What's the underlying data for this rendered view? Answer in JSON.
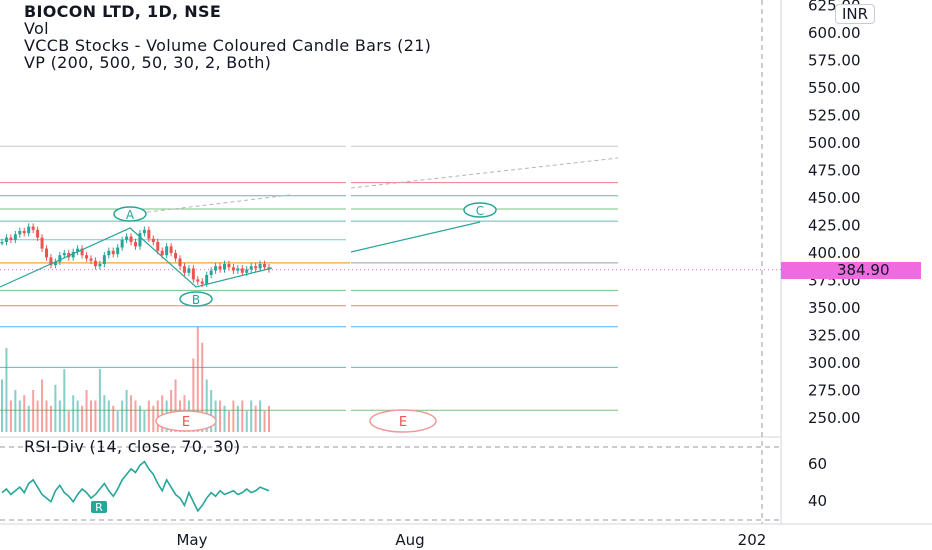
{
  "header": {
    "title": "BIOCON LTD, 1D, NSE",
    "indicators": [
      "Vol",
      "VCCB Stocks - Volume Coloured Candle Bars (21)",
      "VP (200, 500, 50, 30, 2, Both)"
    ],
    "currency": "INR"
  },
  "rsi_pane": {
    "title": "RSI-Div (14, close, 70, 30)",
    "tick_labels": [
      "60",
      "40"
    ],
    "divergence_label": "R"
  },
  "colors": {
    "bull": "#26a69a",
    "bear": "#ef5350",
    "last_price": "#f06be0",
    "wave_line": "#26a69a",
    "level_orange": "#f7b55e"
  },
  "chart_data": [
    {
      "type": "line",
      "title": "BIOCON LTD, 1D, NSE",
      "price_axis_labels": [
        "625.00",
        "600.00",
        "575.00",
        "550.00",
        "525.00",
        "500.00",
        "475.00",
        "450.00",
        "425.00",
        "400.00",
        "375.00",
        "350.00",
        "325.00",
        "300.00",
        "275.00",
        "250.00"
      ],
      "time_axis_labels": [
        "May",
        "Aug",
        "202"
      ],
      "last_price": "384.90",
      "ylim": [
        240,
        625
      ],
      "fib_levels": [
        497,
        464,
        452,
        440,
        429,
        412,
        391,
        366,
        352,
        333,
        296,
        257
      ],
      "wave_points": [
        {
          "label": "A",
          "price": 424
        },
        {
          "label": "B",
          "price": 369
        },
        {
          "label": "C",
          "price": 428
        }
      ],
      "wave_labels": [
        "A",
        "B",
        "C"
      ],
      "event_labels": [
        "E",
        "E"
      ],
      "close_series": [
        410,
        414,
        412,
        417,
        420,
        418,
        424,
        421,
        414,
        404,
        396,
        389,
        392,
        398,
        400,
        396,
        401,
        404,
        398,
        395,
        393,
        388,
        390,
        398,
        402,
        399,
        405,
        412,
        415,
        410,
        406,
        418,
        421,
        413,
        410,
        402,
        398,
        406,
        400,
        395,
        388,
        382,
        386,
        376,
        374,
        372,
        380,
        384,
        388,
        385,
        390,
        387,
        384,
        386,
        382,
        385,
        388,
        386,
        390,
        387,
        385
      ],
      "volume": [
        0.5,
        0.8,
        0.3,
        0.4,
        0.3,
        0.35,
        0.25,
        0.4,
        0.3,
        0.5,
        0.3,
        0.25,
        0.45,
        0.3,
        0.6,
        0.2,
        0.35,
        0.3,
        0.25,
        0.4,
        0.3,
        0.3,
        0.6,
        0.35,
        0.3,
        0.25,
        0.2,
        0.3,
        0.4,
        0.35,
        0.3,
        0.25,
        0.2,
        0.3,
        0.25,
        0.3,
        0.35,
        0.3,
        0.4,
        0.5,
        0.3,
        0.35,
        0.3,
        0.7,
        1.0,
        0.85,
        0.5,
        0.4,
        0.3,
        0.3,
        0.25,
        0.2,
        0.3,
        0.25,
        0.3,
        0.2,
        0.3,
        0.25,
        0.3,
        0.2,
        0.25
      ]
    },
    {
      "type": "line",
      "title": "RSI-Div (14, close, 70, 30)",
      "ylim": [
        30,
        70
      ],
      "y": [
        45,
        47,
        44,
        46,
        48,
        45,
        50,
        52,
        48,
        44,
        42,
        40,
        46,
        49,
        45,
        43,
        40,
        44,
        47,
        45,
        42,
        44,
        47,
        50,
        46,
        43,
        47,
        52,
        55,
        58,
        56,
        60,
        62,
        58,
        55,
        50,
        46,
        52,
        48,
        44,
        42,
        38,
        45,
        40,
        35,
        38,
        42,
        45,
        43,
        46,
        44,
        45,
        46,
        44,
        45,
        47,
        45,
        46,
        48,
        47,
        46
      ]
    }
  ]
}
